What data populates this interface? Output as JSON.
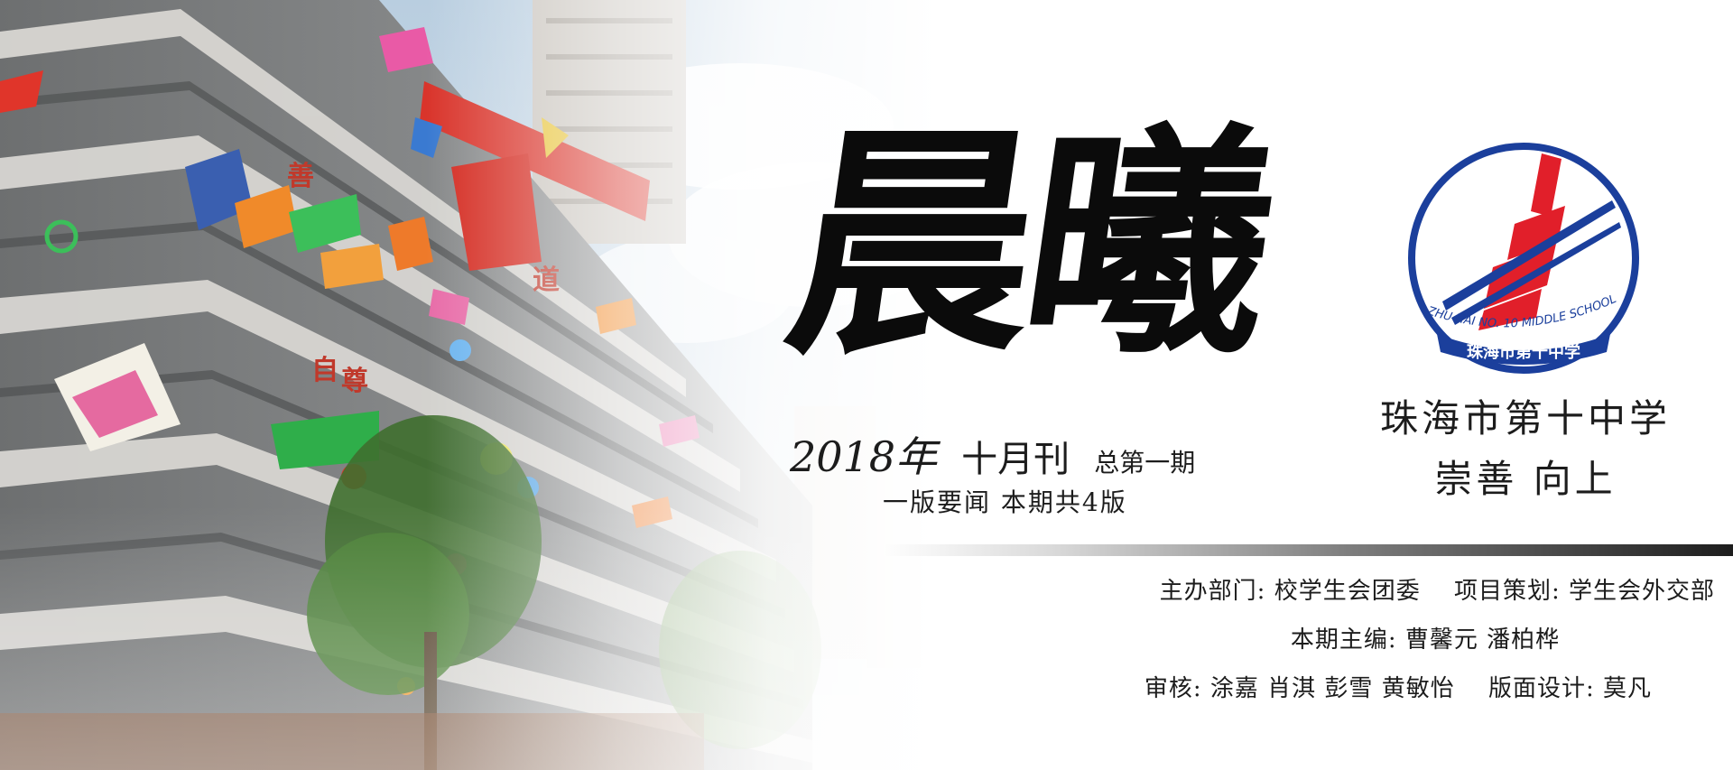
{
  "masthead": {
    "title": "晨曦",
    "year": "2018年",
    "month": "十月刊",
    "total": "总第一期",
    "subline": "一版要闻 本期共4版"
  },
  "school": {
    "logo_text_en": "ZHU HAI NO. 10 MIDDLE SCHOOL",
    "logo_text_cn": "珠海市第十中学",
    "name": "珠海市第十中学",
    "motto": "崇善 向上"
  },
  "credits": {
    "organizer": "主办部门: 校学生会团委",
    "planner": "项目策划: 学生会外交部",
    "editors": "本期主编: 曹馨元 潘柏桦",
    "reviewers": "审核: 涂嘉 肖淇 彭雪 黄敏怡",
    "designer": "版面设计: 莫凡"
  },
  "colors": {
    "logo_blue": "#1b3f9c",
    "logo_red": "#e11f2a",
    "ink": "#1c1c1c"
  }
}
